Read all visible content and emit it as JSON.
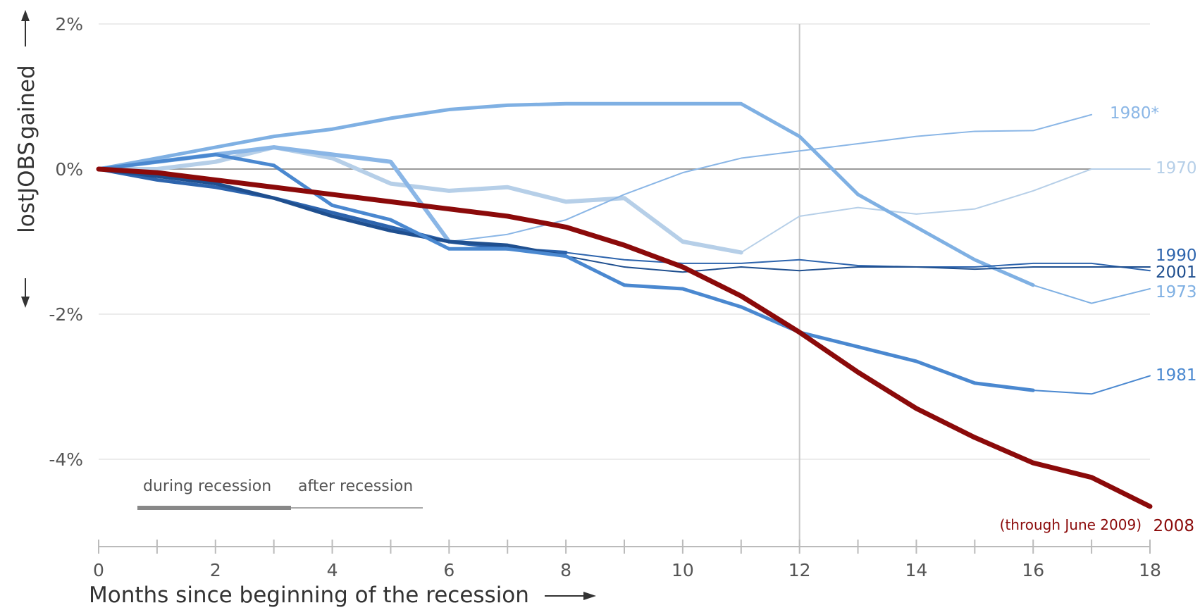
{
  "chart_data": {
    "type": "line",
    "xlabel": "Months since beginning of the recession",
    "ylabel": {
      "lost": "lost",
      "jobs": "JOBS",
      "gained": "gained"
    },
    "x_ticks": [
      0,
      2,
      4,
      6,
      8,
      10,
      12,
      14,
      16,
      18
    ],
    "y_ticks": [
      {
        "value": 2,
        "label": "2%"
      },
      {
        "value": 0,
        "label": "0%"
      },
      {
        "value": -2,
        "label": "-2%"
      },
      {
        "value": -4,
        "label": "-4%"
      }
    ],
    "xlim": [
      0,
      18
    ],
    "ylim": [
      -5.0,
      2.2
    ],
    "reference_line_x": 12,
    "grid": "horizontal",
    "legend": {
      "during_label": "during recession",
      "after_label": "after recession"
    },
    "series": [
      {
        "name": "1980*",
        "color": "#8ab6e6",
        "width_during": 6,
        "width_after": 2,
        "recession_end": 6,
        "x": [
          0,
          1,
          2,
          3,
          4,
          5,
          6,
          7,
          8,
          9,
          10,
          11,
          12,
          13,
          14,
          15,
          16,
          17
        ],
        "y": [
          0,
          0.1,
          0.2,
          0.3,
          0.2,
          0.1,
          -1.0,
          -0.9,
          -0.7,
          -0.35,
          -0.05,
          0.15,
          0.25,
          0.35,
          0.45,
          0.52,
          0.53,
          0.75
        ]
      },
      {
        "name": "1970",
        "color": "#b6cfe8",
        "width_during": 6,
        "width_after": 2,
        "recession_end": 11,
        "x": [
          0,
          1,
          2,
          3,
          4,
          5,
          6,
          7,
          8,
          9,
          10,
          11,
          12,
          13,
          14,
          15,
          16,
          17,
          18
        ],
        "y": [
          0,
          0,
          0.1,
          0.3,
          0.15,
          -0.2,
          -0.3,
          -0.25,
          -0.45,
          -0.4,
          -1.0,
          -1.15,
          -0.65,
          -0.53,
          -0.62,
          -0.55,
          -0.3,
          0,
          0
        ]
      },
      {
        "name": "1973",
        "color": "#7fb0e3",
        "width_during": 5,
        "width_after": 2,
        "recession_end": 16,
        "x": [
          0,
          1,
          2,
          3,
          4,
          5,
          6,
          7,
          8,
          9,
          10,
          11,
          12,
          13,
          14,
          15,
          16,
          17,
          18
        ],
        "y": [
          0,
          0.15,
          0.3,
          0.45,
          0.55,
          0.7,
          0.82,
          0.88,
          0.9,
          0.9,
          0.9,
          0.9,
          0.45,
          -0.35,
          -0.8,
          -1.25,
          -1.6,
          -1.85,
          -1.65
        ]
      },
      {
        "name": "1990",
        "color": "#2d64ad",
        "width_during": 5,
        "width_after": 2,
        "recession_end": 8,
        "x": [
          0,
          1,
          2,
          3,
          4,
          5,
          6,
          7,
          8,
          9,
          10,
          11,
          12,
          13,
          14,
          15,
          16,
          17,
          18
        ],
        "y": [
          0,
          -0.15,
          -0.25,
          -0.4,
          -0.6,
          -0.8,
          -1.0,
          -1.1,
          -1.15,
          -1.25,
          -1.3,
          -1.3,
          -1.25,
          -1.33,
          -1.35,
          -1.35,
          -1.3,
          -1.3,
          -1.4
        ]
      },
      {
        "name": "2001",
        "color": "#1f4f8f",
        "width_during": 5,
        "width_after": 2,
        "recession_end": 8,
        "x": [
          0,
          1,
          2,
          3,
          4,
          5,
          6,
          7,
          8,
          9,
          10,
          11,
          12,
          13,
          14,
          15,
          16,
          17,
          18
        ],
        "y": [
          0,
          -0.1,
          -0.2,
          -0.4,
          -0.65,
          -0.85,
          -1.0,
          -1.05,
          -1.2,
          -1.35,
          -1.42,
          -1.35,
          -1.4,
          -1.35,
          -1.35,
          -1.38,
          -1.35,
          -1.35,
          -1.35
        ]
      },
      {
        "name": "1981",
        "color": "#4a88d0",
        "width_during": 5,
        "width_after": 2,
        "recession_end": 16,
        "x": [
          0,
          1,
          2,
          3,
          4,
          5,
          6,
          7,
          8,
          9,
          10,
          11,
          12,
          13,
          14,
          15,
          16,
          17,
          18
        ],
        "y": [
          0,
          0.1,
          0.2,
          0.05,
          -0.5,
          -0.7,
          -1.1,
          -1.1,
          -1.2,
          -1.6,
          -1.65,
          -1.9,
          -2.25,
          -2.45,
          -2.65,
          -2.95,
          -3.05,
          -3.1,
          -2.85
        ]
      },
      {
        "name": "2008",
        "color": "#8b0a0a",
        "width_during": 7,
        "width_after": 7,
        "recession_end": 18,
        "x": [
          0,
          1,
          2,
          3,
          4,
          5,
          6,
          7,
          8,
          9,
          10,
          11,
          12,
          13,
          14,
          15,
          16,
          17,
          18
        ],
        "y": [
          0,
          -0.05,
          -0.15,
          -0.25,
          -0.35,
          -0.45,
          -0.55,
          -0.65,
          -0.8,
          -1.05,
          -1.35,
          -1.75,
          -2.25,
          -2.8,
          -3.3,
          -3.7,
          -4.05,
          -4.25,
          -4.65
        ]
      }
    ],
    "annotation_2008": "(through June 2009)"
  }
}
